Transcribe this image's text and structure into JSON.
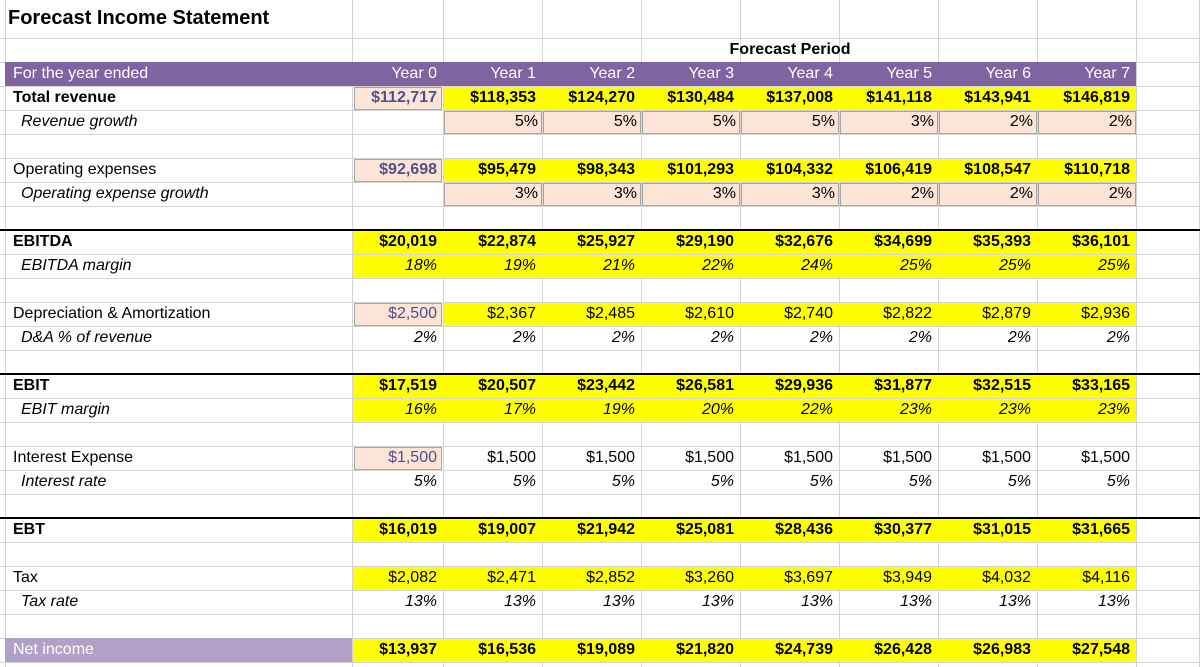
{
  "title": "Forecast Income Statement",
  "forecast_period_label": "Forecast Period",
  "header_label": "For the year ended",
  "years": [
    "Year 0",
    "Year 1",
    "Year 2",
    "Year 3",
    "Year 4",
    "Year 5",
    "Year 6",
    "Year 7"
  ],
  "colors": {
    "header_purple": "#8064a2",
    "net_income_purple": "#b1a0c7",
    "highlight_yellow": "#ffff00",
    "input_peach": "#fce4d6",
    "input_text": "#4f4f8f"
  },
  "rows": {
    "total_revenue": {
      "label": "Total revenue",
      "values": [
        "$112,717",
        "$118,353",
        "$124,270",
        "$130,484",
        "$137,008",
        "$141,118",
        "$143,941",
        "$146,819"
      ]
    },
    "revenue_growth": {
      "label": "Revenue growth",
      "values": [
        "",
        "5%",
        "5%",
        "5%",
        "5%",
        "3%",
        "2%",
        "2%"
      ]
    },
    "operating_expenses": {
      "label": "Operating expenses",
      "values": [
        "$92,698",
        "$95,479",
        "$98,343",
        "$101,293",
        "$104,332",
        "$106,419",
        "$108,547",
        "$110,718"
      ]
    },
    "opex_growth": {
      "label": "Operating expense growth",
      "values": [
        "",
        "3%",
        "3%",
        "3%",
        "3%",
        "2%",
        "2%",
        "2%"
      ]
    },
    "ebitda": {
      "label": "EBITDA",
      "values": [
        "$20,019",
        "$22,874",
        "$25,927",
        "$29,190",
        "$32,676",
        "$34,699",
        "$35,393",
        "$36,101"
      ]
    },
    "ebitda_margin": {
      "label": "EBITDA margin",
      "values": [
        "18%",
        "19%",
        "21%",
        "22%",
        "24%",
        "25%",
        "25%",
        "25%"
      ]
    },
    "da": {
      "label": "Depreciation & Amortization",
      "values": [
        "$2,500",
        "$2,367",
        "$2,485",
        "$2,610",
        "$2,740",
        "$2,822",
        "$2,879",
        "$2,936"
      ]
    },
    "da_pct": {
      "label": "D&A % of revenue",
      "values": [
        "2%",
        "2%",
        "2%",
        "2%",
        "2%",
        "2%",
        "2%",
        "2%"
      ]
    },
    "ebit": {
      "label": "EBIT",
      "values": [
        "$17,519",
        "$20,507",
        "$23,442",
        "$26,581",
        "$29,936",
        "$31,877",
        "$32,515",
        "$33,165"
      ]
    },
    "ebit_margin": {
      "label": "EBIT margin",
      "values": [
        "16%",
        "17%",
        "19%",
        "20%",
        "22%",
        "23%",
        "23%",
        "23%"
      ]
    },
    "interest": {
      "label": "Interest Expense",
      "values": [
        "$1,500",
        "$1,500",
        "$1,500",
        "$1,500",
        "$1,500",
        "$1,500",
        "$1,500",
        "$1,500"
      ]
    },
    "interest_rate": {
      "label": "Interest rate",
      "values": [
        "5%",
        "5%",
        "5%",
        "5%",
        "5%",
        "5%",
        "5%",
        "5%"
      ]
    },
    "ebt": {
      "label": "EBT",
      "values": [
        "$16,019",
        "$19,007",
        "$21,942",
        "$25,081",
        "$28,436",
        "$30,377",
        "$31,015",
        "$31,665"
      ]
    },
    "tax": {
      "label": "Tax",
      "values": [
        "$2,082",
        "$2,471",
        "$2,852",
        "$3,260",
        "$3,697",
        "$3,949",
        "$4,032",
        "$4,116"
      ]
    },
    "tax_rate": {
      "label": "Tax rate",
      "values": [
        "13%",
        "13%",
        "13%",
        "13%",
        "13%",
        "13%",
        "13%",
        "13%"
      ]
    },
    "net_income": {
      "label": "Net income",
      "values": [
        "$13,937",
        "$16,536",
        "$19,089",
        "$21,820",
        "$24,739",
        "$26,428",
        "$26,983",
        "$27,548"
      ]
    }
  }
}
